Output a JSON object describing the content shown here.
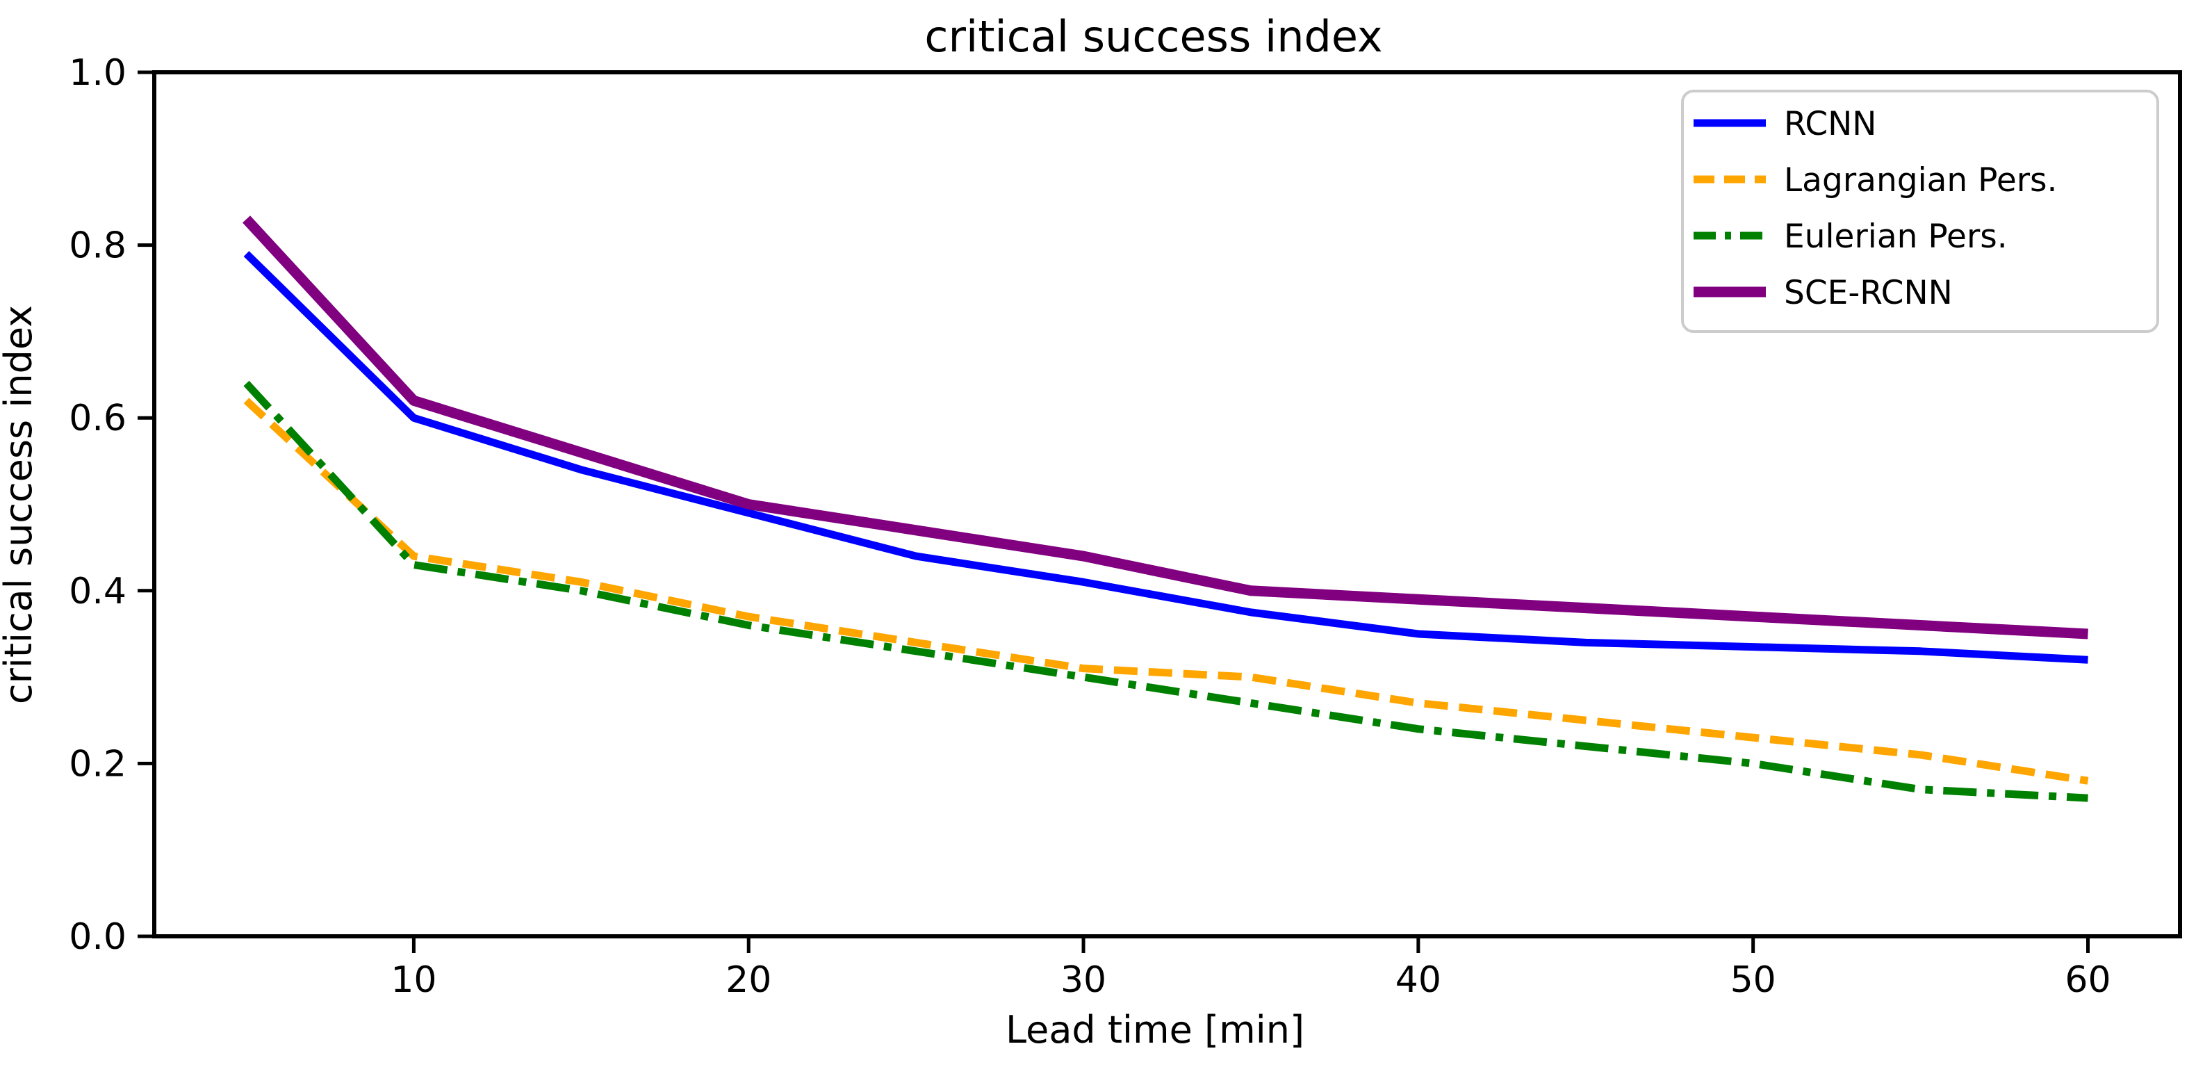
{
  "figure": {
    "title": "critical success index",
    "xlabel": "Lead time [min]",
    "ylabel": "critical success index"
  },
  "chart_data": {
    "type": "line",
    "title": "critical success index",
    "xlabel": "Lead time [min]",
    "ylabel": "critical success index",
    "x": [
      5,
      10,
      15,
      20,
      25,
      30,
      35,
      40,
      45,
      50,
      55,
      60
    ],
    "series": [
      {
        "name": "RCNN",
        "color": "#0000ff",
        "linestyle": "solid",
        "linewidth": 11,
        "values": [
          0.79,
          0.6,
          0.54,
          0.49,
          0.44,
          0.41,
          0.375,
          0.35,
          0.34,
          0.335,
          0.33,
          0.32
        ]
      },
      {
        "name": "Lagrangian Pers.",
        "color": "#ffa500",
        "linestyle": "dashed",
        "linewidth": 11,
        "values": [
          0.62,
          0.44,
          0.41,
          0.37,
          0.34,
          0.31,
          0.3,
          0.27,
          0.25,
          0.23,
          0.21,
          0.18
        ]
      },
      {
        "name": "Eulerian Pers.",
        "color": "#008000",
        "linestyle": "dashdot",
        "linewidth": 11,
        "values": [
          0.64,
          0.43,
          0.4,
          0.36,
          0.33,
          0.3,
          0.27,
          0.24,
          0.22,
          0.2,
          0.17,
          0.16
        ]
      },
      {
        "name": "SCE-RCNN",
        "color": "#800080",
        "linestyle": "solid",
        "linewidth": 15,
        "values": [
          0.83,
          0.62,
          0.56,
          0.5,
          0.47,
          0.44,
          0.4,
          0.39,
          0.38,
          0.37,
          0.36,
          0.35
        ]
      }
    ],
    "xlim": [
      2.25,
      62.75
    ],
    "ylim": [
      0.0,
      1.0
    ],
    "xticks": {
      "values": [
        10,
        20,
        30,
        40,
        50,
        60
      ],
      "labels": [
        "10",
        "20",
        "30",
        "40",
        "50",
        "60"
      ]
    },
    "yticks": {
      "values": [
        0.0,
        0.2,
        0.4,
        0.6,
        0.8,
        1.0
      ],
      "labels": [
        "0.0",
        "0.2",
        "0.4",
        "0.6",
        "0.8",
        "1.0"
      ]
    },
    "legend": {
      "position": "upper right",
      "entries": [
        "RCNN",
        "Lagrangian Pers.",
        "Eulerian Pers.",
        "SCE-RCNN"
      ]
    },
    "grid": false
  }
}
